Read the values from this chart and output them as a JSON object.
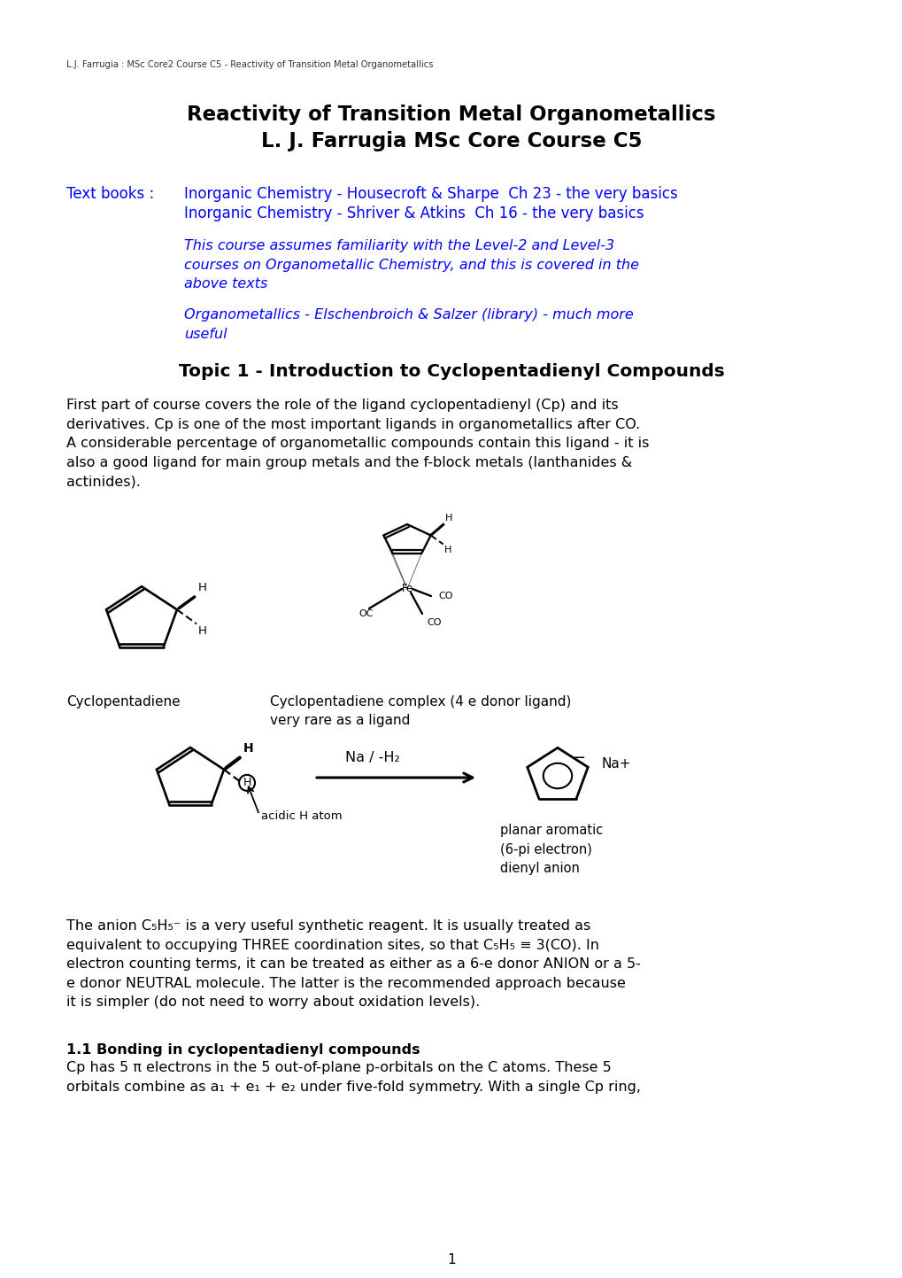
{
  "bg_color": "#ffffff",
  "header_text": "L.J. Farrugia : MSc Core2 Course C5 - Reactivity of Transition Metal Organometallics",
  "title_line1": "Reactivity of Transition Metal Organometallics",
  "title_line2": "L. J. Farrugia MSc Core Course C5",
  "textbooks_label": "Text books :",
  "textbook1": "Inorganic Chemistry - Housecroft & Sharpe  Ch 23 - the very basics",
  "textbook2": "Inorganic Chemistry - Shriver & Atkins  Ch 16 - the very basics",
  "italic_text1": "This course assumes familiarity with the Level-2 and Level-3\ncourses on Organometallic Chemistry, and this is covered in the\nabove texts",
  "italic_text2": "Organometallics - Elschenbroich & Salzer (library) - much more\nuseful",
  "topic_heading": "Topic 1 - Introduction to Cyclopentadienyl Compounds",
  "paragraph1": "First part of course covers the role of the ligand cyclopentadienyl (Cp) and its\nderivatives. Cp is one of the most important ligands in organometallics after CO.\nA considerable percentage of organometallic compounds contain this ligand - it is\nalso a good ligand for main group metals and the f-block metals (lanthanides &\nactinides).",
  "caption_left": "Cyclopentadiene",
  "caption_right_line1": "Cyclopentadiene complex (4 e donor ligand)",
  "caption_right_line2": "very rare as a ligand",
  "reaction_label": "Na / -H₂",
  "acidic_label": "acidic H atom",
  "planar_label": "planar aromatic\n(6-pi electron)\ndienyl anion",
  "na_plus": "Na+",
  "section_heading": "1.1 Bonding in cyclopentadienyl compounds",
  "paragraph2": "Cp has 5 π electrons in the 5 out-of-plane p-orbitals on the C atoms. These 5\norbitals combine as a₁ + e₁ + e₂ under five-fold symmetry. With a single Cp ring,",
  "page_number": "1",
  "blue_color": "#0000FF",
  "black_color": "#000000"
}
